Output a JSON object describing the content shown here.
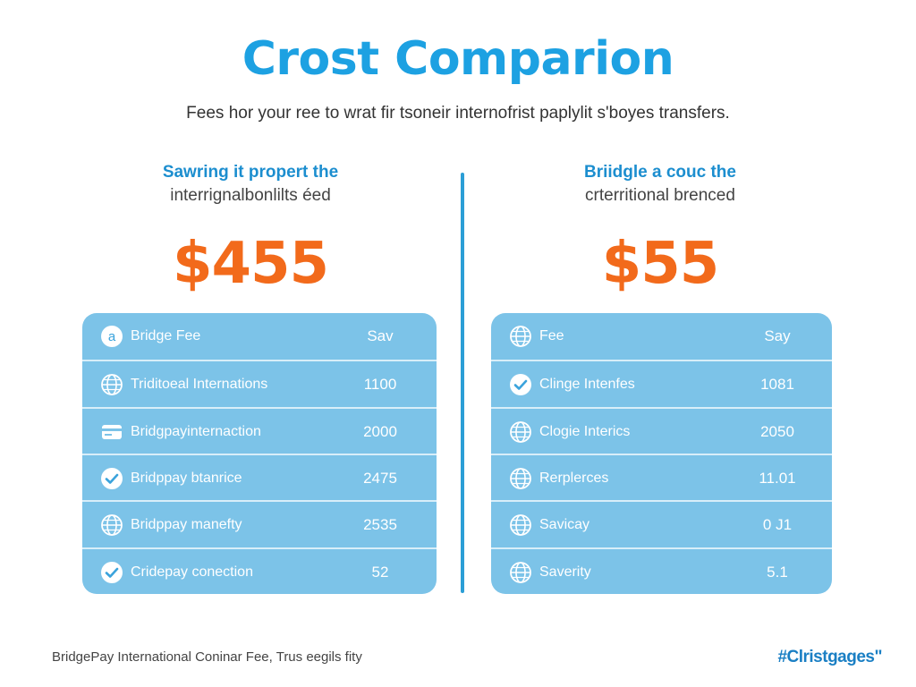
{
  "title": "Crost Comparion",
  "subtitle": "Fees hor your ree to wrat fir tsoneir internofrist paplylit s'boyes transfers.",
  "left": {
    "heading_line1": "Sawring it propert the",
    "heading_line2": "interrignalbonlilts éed",
    "big_value": "$455",
    "rows": [
      {
        "icon": "letter-a-icon",
        "label": "Bridge Fee",
        "value": "Sav"
      },
      {
        "icon": "globe-icon",
        "label": "Triditoeal Internations",
        "value": "1100"
      },
      {
        "icon": "card-icon",
        "label": "Bridgpayinternaction",
        "value": "2000"
      },
      {
        "icon": "check-icon",
        "label": "Bridppay btanrice",
        "value": "2475"
      },
      {
        "icon": "globe-icon",
        "label": "Bridppay manefty",
        "value": "2535"
      },
      {
        "icon": "check-icon",
        "label": "Cridepay conection",
        "value": "52"
      }
    ]
  },
  "right": {
    "heading_line1": "Briidgle a couc the",
    "heading_line2": "crterritional brenced",
    "big_value": "$55",
    "rows": [
      {
        "icon": "globe-icon",
        "label": "Fee",
        "value": "Say"
      },
      {
        "icon": "check-icon",
        "label": "Clinge Intenfes",
        "value": "1081"
      },
      {
        "icon": "globe-icon",
        "label": "Clogie Interics",
        "value": "2050"
      },
      {
        "icon": "globe-icon",
        "label": "Rerplerces",
        "value": "11.01"
      },
      {
        "icon": "globe-icon",
        "label": "Savicay",
        "value": "0 Ј1"
      },
      {
        "icon": "globe-icon",
        "label": "Saverity",
        "value": "5.1"
      }
    ]
  },
  "footer_left": "BridgePay International Coninar Fee, Trus eegils fity",
  "footer_right": "#Clristgages\""
}
